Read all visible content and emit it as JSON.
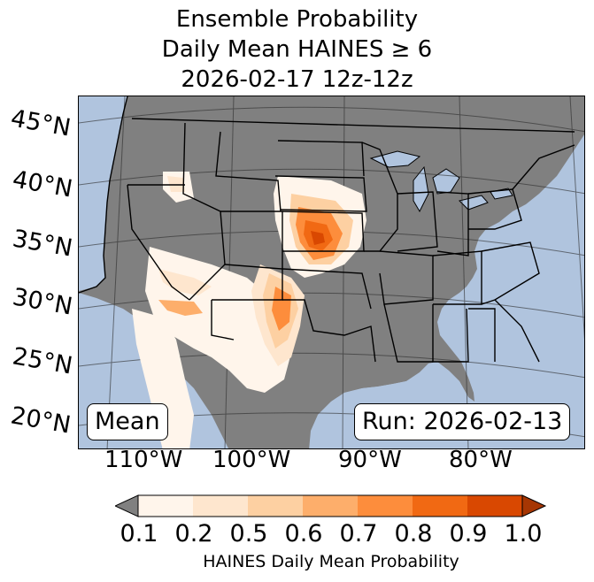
{
  "title": {
    "line1": "Ensemble Probability",
    "line2": "Daily Mean HAINES ≥ 6",
    "line3": "2026-02-17 12z-12z"
  },
  "map": {
    "lat_labels": [
      "45°N",
      "40°N",
      "35°N",
      "30°N",
      "25°N",
      "20°N"
    ],
    "lon_labels": [
      "110°W",
      "100°W",
      "90°W",
      "80°W"
    ],
    "mean_label": "Mean",
    "run_label": "Run: 2026-02-13",
    "colors": {
      "ocean": "#b0c4de",
      "land": "#808080"
    }
  },
  "colorbar": {
    "ticks": [
      "0.1",
      "0.2",
      "0.5",
      "0.6",
      "0.7",
      "0.8",
      "0.9",
      "1.0"
    ],
    "colors": [
      "#fff5eb",
      "#fee6ce",
      "#fdd0a2",
      "#fdae6b",
      "#fd8d3c",
      "#f16913",
      "#d94801",
      "#a63603"
    ],
    "under_color": "#808080",
    "label": "HAINES Daily Mean Probability"
  }
}
